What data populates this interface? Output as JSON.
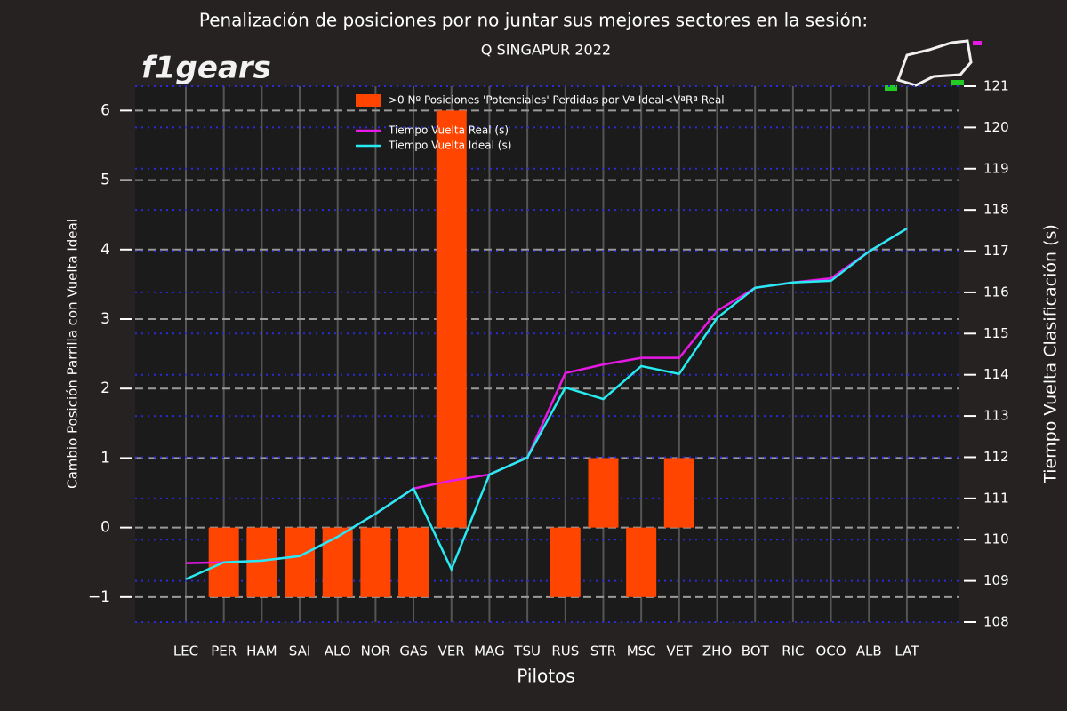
{
  "chart_data": {
    "type": "bar",
    "title": "Penalización de posiciones por no juntar sus mejores sectores en la sesión:",
    "subtitle": "Q SINGAPUR 2022",
    "logo": "f1gears",
    "x_label": "Pilotos",
    "y_label": "Cambio Posición Parrilla con Vuelta Ideal",
    "y2_label": "Tiempo Vuelta Clasificación (s)",
    "categories": [
      "LEC",
      "PER",
      "HAM",
      "SAI",
      "ALO",
      "NOR",
      "GAS",
      "VER",
      "MAG",
      "TSU",
      "RUS",
      "STR",
      "MSC",
      "VET",
      "ZHO",
      "BOT",
      "RIC",
      "OCO",
      "ALB",
      "LAT"
    ],
    "series": [
      {
        "name": ">0 Nº Posiciones 'Potenciales' Perdidas por Vª Ideal<VªRª Real",
        "type": "bar",
        "color": "#ff4500",
        "values": [
          0,
          -1,
          -1,
          -1,
          -1,
          -1,
          -1,
          6,
          0,
          0,
          -1,
          1,
          -1,
          1,
          0,
          0,
          0,
          0,
          0,
          0
        ]
      },
      {
        "name": "Tiempo Vuelta Real (s)",
        "type": "line",
        "axis": "y2",
        "color": "#e619e6",
        "values": [
          109.43,
          109.45,
          109.49,
          109.6,
          110.07,
          110.63,
          111.24,
          111.43,
          111.58,
          111.99,
          114.04,
          114.25,
          114.41,
          114.41,
          115.55,
          116.11,
          116.24,
          116.34,
          116.99,
          117.55
        ]
      },
      {
        "name": "Tiempo Vuelta Ideal (s)",
        "type": "line",
        "axis": "y2",
        "color": "#26ecf2",
        "values": [
          109.04,
          109.45,
          109.49,
          109.6,
          110.07,
          110.63,
          111.24,
          109.28,
          111.58,
          111.99,
          113.69,
          113.41,
          114.21,
          114.02,
          115.38,
          116.11,
          116.24,
          116.28,
          116.99,
          117.55
        ]
      }
    ],
    "ylim": [
      -1.36,
      6.35
    ],
    "yticks": [
      {
        "value": -1,
        "label": "−1"
      },
      0,
      1,
      2,
      3,
      4,
      5,
      6
    ],
    "y2lim": [
      108,
      121
    ],
    "y2ticks": [
      108,
      109,
      110,
      111,
      112,
      113,
      114,
      115,
      116,
      117,
      118,
      119,
      120,
      121
    ],
    "grid": true,
    "legend": "upper center"
  }
}
